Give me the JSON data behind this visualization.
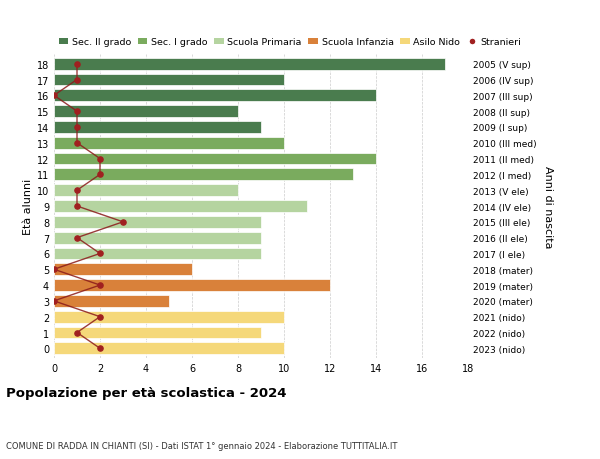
{
  "ages": [
    18,
    17,
    16,
    15,
    14,
    13,
    12,
    11,
    10,
    9,
    8,
    7,
    6,
    5,
    4,
    3,
    2,
    1,
    0
  ],
  "right_labels": [
    "2005 (V sup)",
    "2006 (IV sup)",
    "2007 (III sup)",
    "2008 (II sup)",
    "2009 (I sup)",
    "2010 (III med)",
    "2011 (II med)",
    "2012 (I med)",
    "2013 (V ele)",
    "2014 (IV ele)",
    "2015 (III ele)",
    "2016 (II ele)",
    "2017 (I ele)",
    "2018 (mater)",
    "2019 (mater)",
    "2020 (mater)",
    "2021 (nido)",
    "2022 (nido)",
    "2023 (nido)"
  ],
  "bar_values": [
    17,
    10,
    14,
    8,
    9,
    10,
    14,
    13,
    8,
    11,
    9,
    9,
    9,
    6,
    12,
    5,
    10,
    9,
    10
  ],
  "bar_colors": [
    "#4a7c4e",
    "#4a7c4e",
    "#4a7c4e",
    "#4a7c4e",
    "#4a7c4e",
    "#7aab5e",
    "#7aab5e",
    "#7aab5e",
    "#b5d4a0",
    "#b5d4a0",
    "#b5d4a0",
    "#b5d4a0",
    "#b5d4a0",
    "#d9813a",
    "#d9813a",
    "#d9813a",
    "#f5d87a",
    "#f5d87a",
    "#f5d87a"
  ],
  "stranieri_x": [
    1,
    1,
    0,
    1,
    1,
    1,
    2,
    2,
    1,
    1,
    3,
    1,
    2,
    0,
    2,
    0,
    2,
    1,
    2
  ],
  "legend_labels": [
    "Sec. II grado",
    "Sec. I grado",
    "Scuola Primaria",
    "Scuola Infanzia",
    "Asilo Nido",
    "Stranieri"
  ],
  "legend_colors": [
    "#4a7c4e",
    "#7aab5e",
    "#b5d4a0",
    "#d9813a",
    "#f5d87a",
    "#a02020"
  ],
  "title": "Popolazione per età scolastica - 2024",
  "subtitle": "COMUNE DI RADDA IN CHIANTI (SI) - Dati ISTAT 1° gennaio 2024 - Elaborazione TUTTITALIA.IT",
  "ylabel": "Età alunni",
  "right_ylabel": "Anni di nascita",
  "xlim": [
    0,
    18
  ],
  "xticks": [
    0,
    2,
    4,
    6,
    8,
    10,
    12,
    14,
    16,
    18
  ],
  "bar_height": 0.75,
  "background_color": "#ffffff",
  "grid_color": "#cccccc"
}
